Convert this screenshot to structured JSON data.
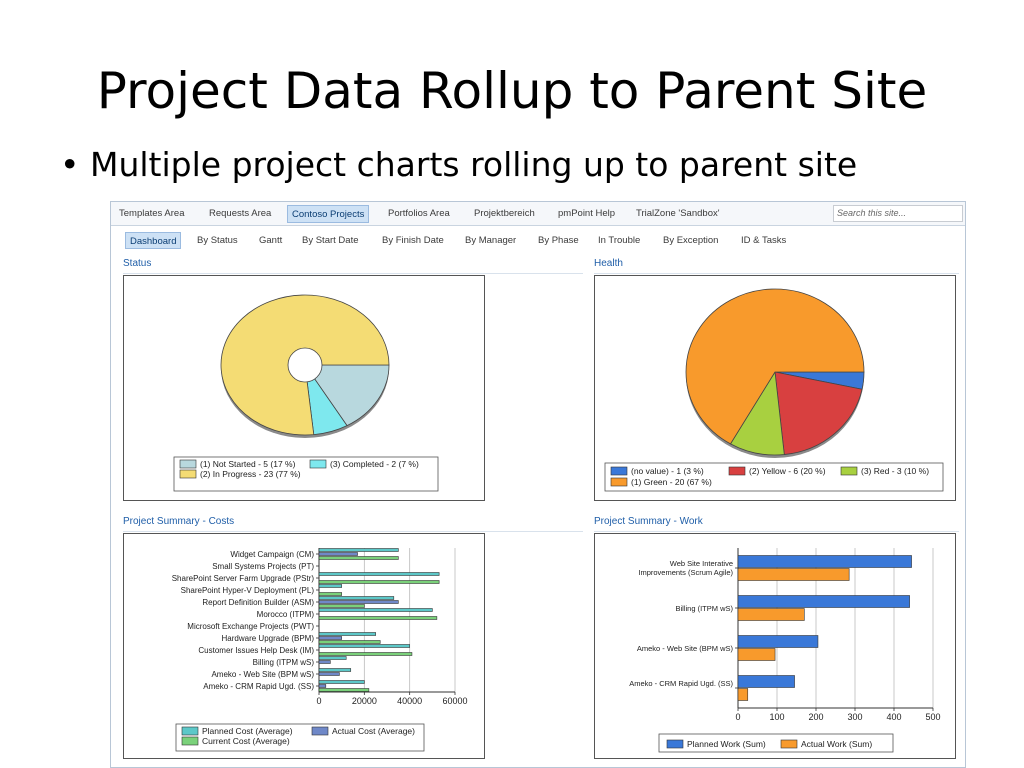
{
  "slide": {
    "title": "Project Data Rollup to Parent Site",
    "bullet": "Multiple project charts rolling up to parent site"
  },
  "top_nav": {
    "tabs": [
      "Templates Area",
      "Requests Area",
      "Contoso Projects",
      "Portfolios Area",
      "Projektbereich",
      "pmPoint Help",
      "TrialZone 'Sandbox'"
    ],
    "active": "Contoso Projects",
    "search_placeholder": "Search this site..."
  },
  "sub_nav": {
    "items": [
      "Dashboard",
      "By Status",
      "Gantt",
      "By Start Date",
      "By Finish Date",
      "By Manager",
      "By Phase",
      "In Trouble",
      "By Exception",
      "ID & Tasks"
    ],
    "active": "Dashboard"
  },
  "sections": {
    "status": "Status",
    "health": "Health",
    "costs": "Project Summary - Costs",
    "work": "Project Summary - Work"
  },
  "chart_data": [
    {
      "id": "status",
      "type": "pie",
      "labels": [
        "(1) Not Started - 5 (17 %)",
        "(3) Completed - 2 (7 %)",
        "(2) In Progress - 23 (77 %)"
      ],
      "values": [
        5,
        2,
        23
      ],
      "colors": [
        "#b8d8de",
        "#7ee8ee",
        "#f4dc74"
      ],
      "donut": true
    },
    {
      "id": "health",
      "type": "pie",
      "labels": [
        "(no value) - 1 (3 %)",
        "(2) Yellow - 6 (20 %)",
        "(3) Red - 3 (10 %)",
        "(1) Green - 20 (67 %)"
      ],
      "values": [
        1,
        6,
        3,
        20
      ],
      "colors": [
        "#3a78d8",
        "#d84040",
        "#a8d040",
        "#f89a2c"
      ]
    },
    {
      "id": "costs",
      "type": "bar",
      "orientation": "horizontal",
      "categories": [
        "Widget Campaign (CM)",
        "Small Systems Projects (PT)",
        "SharePoint Server Farm Upgrade (PStr)",
        "SharePoint Hyper-V Deployment (PL)",
        "Report Definition Builder (ASM)",
        "Morocco (ITPM)",
        "Microsoft Exchange Projects (PWT)",
        "Hardware Upgrade (BPM)",
        "Customer Issues Help Desk (IM)",
        "Billing (ITPM wS)",
        "Ameko - Web Site (BPM wS)",
        "Ameko - CRM Rapid Ugd. (SS)"
      ],
      "series": [
        {
          "name": "Planned Cost (Average)",
          "color": "#5cc8c8",
          "values": [
            35000,
            0,
            53000,
            10000,
            33000,
            50000,
            0,
            25000,
            40000,
            12000,
            14000,
            20000
          ]
        },
        {
          "name": "Actual Cost (Average)",
          "color": "#6f88c8",
          "values": [
            17000,
            0,
            0,
            0,
            35000,
            0,
            0,
            10000,
            0,
            5000,
            9000,
            3000
          ]
        },
        {
          "name": "Current Cost (Average)",
          "color": "#7ad17a",
          "values": [
            35000,
            0,
            53000,
            10000,
            20000,
            52000,
            0,
            27000,
            41000,
            0,
            0,
            22000
          ]
        }
      ],
      "xticks": [
        "0",
        "20000",
        "40000",
        "60000"
      ],
      "xlim": [
        0,
        60000
      ]
    },
    {
      "id": "work",
      "type": "bar",
      "orientation": "horizontal",
      "categories": [
        "Web Site Interative Improvements (Scrum Agile)",
        "Billing (ITPM wS)",
        "Ameko - Web Site (BPM wS)",
        "Ameko - CRM Rapid Ugd. (SS)"
      ],
      "series": [
        {
          "name": "Planned Work (Sum)",
          "color": "#3a78d8",
          "values": [
            445,
            440,
            205,
            145
          ]
        },
        {
          "name": "Actual Work (Sum)",
          "color": "#f89a2c",
          "values": [
            285,
            170,
            95,
            25
          ]
        }
      ],
      "xticks": [
        "0",
        "100",
        "200",
        "300",
        "400",
        "500"
      ],
      "xlim": [
        0,
        500
      ]
    }
  ]
}
